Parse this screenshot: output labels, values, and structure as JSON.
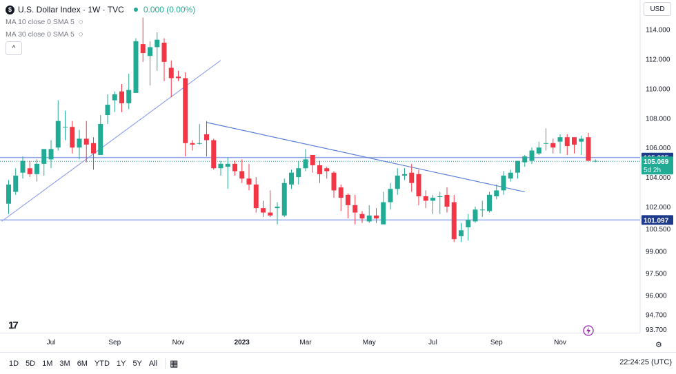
{
  "header": {
    "symbol_icon": "$",
    "title": "U.S. Dollar Index · 1W · TVC",
    "change": "0.000 (0.00%)",
    "indicators": [
      {
        "label": "MA 10 close 0 SMA 5",
        "icon": "eye-slash-icon"
      },
      {
        "label": "MA 30 close 0 SMA 5",
        "icon": "eye-slash-icon"
      }
    ],
    "collapse_icon": "^",
    "currency": "USD"
  },
  "colors": {
    "up": "#22ab94",
    "down": "#f23645",
    "trendline": "#5b7fd6",
    "level": "#90a4e8",
    "price_label": "#1e3a8a",
    "last_label": "#22ab94"
  },
  "chart_data": {
    "type": "candlestick",
    "title": "U.S. Dollar Index · 1W · TVC",
    "ylim": [
      93.7,
      115.5
    ],
    "y_ticks": [
      "114.000",
      "112.000",
      "110.000",
      "108.000",
      "106.000",
      "104.000",
      "102.000",
      "100.500",
      "99.000",
      "97.500",
      "96.000",
      "94.700",
      "93.700"
    ],
    "x_ticks": [
      {
        "label": "Jul",
        "i": 6
      },
      {
        "label": "Sep",
        "i": 15
      },
      {
        "label": "Nov",
        "i": 24
      },
      {
        "label": "2023",
        "i": 33
      },
      {
        "label": "Mar",
        "i": 42
      },
      {
        "label": "May",
        "i": 51
      },
      {
        "label": "Jul",
        "i": 60
      },
      {
        "label": "Sep",
        "i": 69
      },
      {
        "label": "Nov",
        "i": 78
      }
    ],
    "candles": [
      [
        102.2,
        103.5,
        101.5,
        103.8
      ],
      [
        103.0,
        104.1,
        102.8,
        104.6
      ],
      [
        104.3,
        105.1,
        103.9,
        105.4
      ],
      [
        104.6,
        104.2,
        104.0,
        105.1
      ],
      [
        104.2,
        104.9,
        103.7,
        105.2
      ],
      [
        104.9,
        105.9,
        104.1,
        105.9
      ],
      [
        105.2,
        105.9,
        104.6,
        106.5
      ],
      [
        106.0,
        107.8,
        105.8,
        109.2
      ],
      [
        107.4,
        107.4,
        106.5,
        108.5
      ],
      [
        107.4,
        106.0,
        105.6,
        107.8
      ],
      [
        106.0,
        106.6,
        105.2,
        107.2
      ],
      [
        106.6,
        106.2,
        105.0,
        107.8
      ],
      [
        106.3,
        105.6,
        104.5,
        106.7
      ],
      [
        105.5,
        107.6,
        105.5,
        108.2
      ],
      [
        108.2,
        108.9,
        107.6,
        109.6
      ],
      [
        109.2,
        109.6,
        108.4,
        109.8
      ],
      [
        109.8,
        109.0,
        108.4,
        110.3
      ],
      [
        109.0,
        109.9,
        108.6,
        111.0
      ],
      [
        109.7,
        113.2,
        109.7,
        113.4
      ],
      [
        113.0,
        112.4,
        111.8,
        114.8
      ],
      [
        112.2,
        112.8,
        110.2,
        113.2
      ],
      [
        112.8,
        113.3,
        111.2,
        113.8
      ],
      [
        113.1,
        111.8,
        110.5,
        113.4
      ],
      [
        111.4,
        110.7,
        109.4,
        111.9
      ],
      [
        110.8,
        110.7,
        110.5,
        111.2
      ],
      [
        110.7,
        106.3,
        105.4,
        111.1
      ],
      [
        106.3,
        106.2,
        105.8,
        106.5
      ],
      [
        106.3,
        106.3,
        106.2,
        107.6
      ],
      [
        106.9,
        106.5,
        105.4,
        107.8
      ],
      [
        106.5,
        104.6,
        104.5,
        106.6
      ],
      [
        104.6,
        104.9,
        104.1,
        105.1
      ],
      [
        104.7,
        104.9,
        103.2,
        105.3
      ],
      [
        104.9,
        104.4,
        104.1,
        105.1
      ],
      [
        104.4,
        103.9,
        103.6,
        105.2
      ],
      [
        103.9,
        103.5,
        103.1,
        104.9
      ],
      [
        103.5,
        101.9,
        101.6,
        104.0
      ],
      [
        101.9,
        101.6,
        101.3,
        102.4
      ],
      [
        101.6,
        101.4,
        101.3,
        103.1
      ],
      [
        101.9,
        102.0,
        100.8,
        102.3
      ],
      [
        101.4,
        103.6,
        101.3,
        103.9
      ],
      [
        103.5,
        104.3,
        103.2,
        104.5
      ],
      [
        104.0,
        104.6,
        103.5,
        105.1
      ],
      [
        104.6,
        105.2,
        104.4,
        105.9
      ],
      [
        105.5,
        104.8,
        104.3,
        105.5
      ],
      [
        104.8,
        104.2,
        103.6,
        105.1
      ],
      [
        104.6,
        104.4,
        103.9,
        104.7
      ],
      [
        104.3,
        103.1,
        102.6,
        104.4
      ],
      [
        103.3,
        102.6,
        101.7,
        103.5
      ],
      [
        102.8,
        102.1,
        101.2,
        102.9
      ],
      [
        102.1,
        101.6,
        100.8,
        102.8
      ],
      [
        101.5,
        101.2,
        100.9,
        101.7
      ],
      [
        101.0,
        101.4,
        100.9,
        102.1
      ],
      [
        101.4,
        101.2,
        100.9,
        101.9
      ],
      [
        100.8,
        102.3,
        100.8,
        103.0
      ],
      [
        102.3,
        103.2,
        101.8,
        103.6
      ],
      [
        103.2,
        104.1,
        102.8,
        104.6
      ],
      [
        104.1,
        104.2,
        103.8,
        104.6
      ],
      [
        104.3,
        103.6,
        103.0,
        104.9
      ],
      [
        104.2,
        102.7,
        102.1,
        104.5
      ],
      [
        102.7,
        102.4,
        101.9,
        103.1
      ],
      [
        102.4,
        102.6,
        101.5,
        102.8
      ],
      [
        102.7,
        102.7,
        101.5,
        103.0
      ],
      [
        102.8,
        102.0,
        101.6,
        103.3
      ],
      [
        102.3,
        99.8,
        99.6,
        102.8
      ],
      [
        100.0,
        100.4,
        99.6,
        100.9
      ],
      [
        100.6,
        101.1,
        99.7,
        101.5
      ],
      [
        101.0,
        101.8,
        100.9,
        102.0
      ],
      [
        101.8,
        101.8,
        101.3,
        102.4
      ],
      [
        101.7,
        102.8,
        101.6,
        103.0
      ],
      [
        102.7,
        103.1,
        102.5,
        103.5
      ],
      [
        103.1,
        104.1,
        102.8,
        104.4
      ],
      [
        103.9,
        104.3,
        103.7,
        104.5
      ],
      [
        104.3,
        105.1,
        103.9,
        105.1
      ],
      [
        105.0,
        105.4,
        104.7,
        105.5
      ],
      [
        105.1,
        105.8,
        104.9,
        106.0
      ],
      [
        105.6,
        106.0,
        105.5,
        106.4
      ],
      [
        106.3,
        106.3,
        105.8,
        107.3
      ],
      [
        106.3,
        106.0,
        105.6,
        106.6
      ],
      [
        106.4,
        106.7,
        105.6,
        106.9
      ],
      [
        106.7,
        106.1,
        105.5,
        106.9
      ],
      [
        106.7,
        106.2,
        105.6,
        106.7
      ],
      [
        106.4,
        106.6,
        105.5,
        106.8
      ],
      [
        106.7,
        105.1,
        105.1,
        107.0
      ],
      [
        105.1,
        105.1,
        105.0,
        105.2
      ]
    ],
    "lines": [
      {
        "from": [
          -1,
          101.0
        ],
        "to": [
          30,
          111.9
        ],
        "color": "#90a4e8"
      },
      {
        "from": [
          28,
          107.7
        ],
        "to": [
          73,
          103.0
        ],
        "color": "#5b7fd6"
      }
    ],
    "levels": [
      {
        "value": 105.325,
        "label": "105.325",
        "kind": "level"
      },
      {
        "value": 101.097,
        "label": "101.097",
        "kind": "level"
      }
    ],
    "last_price": {
      "value": 105.069,
      "label": "105.069",
      "countdown": "5d 2h"
    }
  },
  "footer": {
    "ranges": [
      "1D",
      "5D",
      "1M",
      "3M",
      "6M",
      "YTD",
      "1Y",
      "5Y",
      "All"
    ],
    "calendar_icon": "calendar-icon",
    "clock": "22:24:25 (UTC)",
    "logo": "17",
    "settings_icon": "gear-icon",
    "alert_icon": "lightning-icon"
  }
}
